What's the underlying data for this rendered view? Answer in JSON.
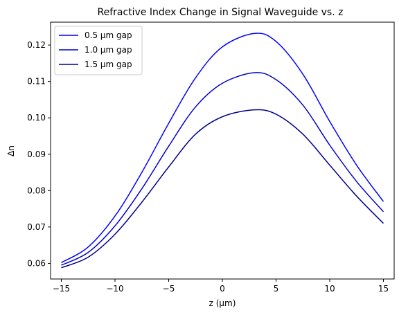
{
  "chart_data": {
    "type": "line",
    "title": "Refractive Index Change in Signal Waveguide vs. z",
    "xlabel": "z (μm)",
    "ylabel": "Δn",
    "xlim": [
      -16,
      16
    ],
    "ylim": [
      0.0557,
      0.1263
    ],
    "xticks": [
      -15,
      -10,
      -5,
      0,
      5,
      10,
      15
    ],
    "xtick_labels": [
      "−15",
      "−10",
      "−5",
      "0",
      "5",
      "10",
      "15"
    ],
    "yticks": [
      0.06,
      0.07,
      0.08,
      0.09,
      0.1,
      0.11,
      0.12
    ],
    "ytick_labels": [
      "0.06",
      "0.07",
      "0.08",
      "0.09",
      "0.10",
      "0.11",
      "0.12"
    ],
    "grid": false,
    "legend_position": "top-left",
    "x": [
      -15,
      -12.5,
      -10,
      -7.5,
      -5,
      -2.5,
      0,
      3,
      5,
      7.5,
      10,
      12.5,
      15
    ],
    "series": [
      {
        "name": "0.5 μm gap",
        "color": "#0000ff",
        "values": [
          0.0602,
          0.0645,
          0.073,
          0.085,
          0.0985,
          0.111,
          0.1195,
          0.1232,
          0.121,
          0.112,
          0.099,
          0.087,
          0.077
        ]
      },
      {
        "name": "1.0 μm gap",
        "color": "#0000cd",
        "values": [
          0.0595,
          0.063,
          0.0703,
          0.0805,
          0.0922,
          0.103,
          0.1095,
          0.1124,
          0.1105,
          0.1035,
          0.0925,
          0.0825,
          0.0742
        ]
      },
      {
        "name": "1.5 μm gap",
        "color": "#00008b",
        "values": [
          0.0588,
          0.0617,
          0.068,
          0.0768,
          0.0865,
          0.0955,
          0.1003,
          0.1022,
          0.101,
          0.0955,
          0.087,
          0.0785,
          0.071
        ]
      }
    ]
  }
}
